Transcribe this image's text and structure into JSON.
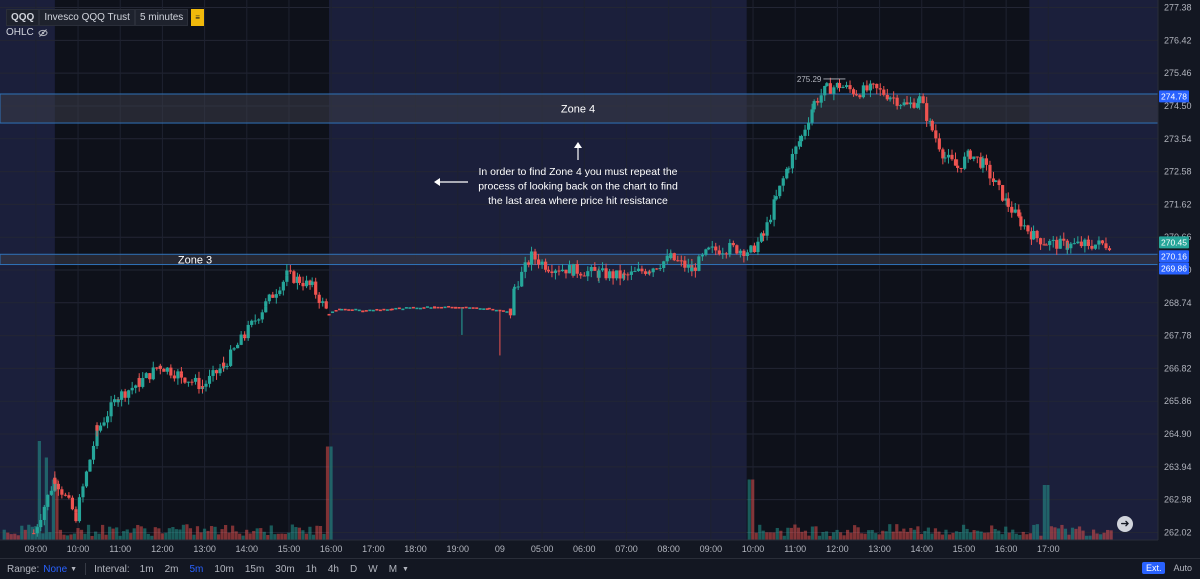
{
  "legend": {
    "symbol": "QQQ",
    "name": "Invesco QQQ Trust",
    "interval": "5 minutes",
    "ohlc_label": "OHLC"
  },
  "toolbar": {
    "range_label": "Range:",
    "range_value": "None",
    "interval_label": "Interval:",
    "intervals": [
      "1m",
      "2m",
      "5m",
      "10m",
      "15m",
      "30m",
      "1h",
      "4h",
      "D",
      "W",
      "M"
    ],
    "active_interval": "5m",
    "ext_label": "Ext.",
    "auto_label": "Auto"
  },
  "colors": {
    "background": "#131722",
    "session_shade": "#1b1f3b",
    "up": "#26a69a",
    "down": "#ef5350",
    "zone_fill": "#3a3d48",
    "zone_border": "#2f72b8"
  },
  "chart_data": {
    "type": "candlestick",
    "ylim": [
      261.8,
      277.6
    ],
    "y_ticks": [
      "277.38",
      "276.42",
      "275.46",
      "274.50",
      "273.54",
      "272.58",
      "271.62",
      "270.66",
      "269.70",
      "268.74",
      "267.78",
      "266.82",
      "265.86",
      "264.90",
      "263.94",
      "262.98",
      "262.02"
    ],
    "x_ticks": [
      "09:00",
      "10:00",
      "11:00",
      "12:00",
      "13:00",
      "14:00",
      "15:00",
      "16:00",
      "17:00",
      "18:00",
      "19:00",
      "09",
      "05:00",
      "06:00",
      "07:00",
      "08:00",
      "09:00",
      "10:00",
      "11:00",
      "12:00",
      "13:00",
      "14:00",
      "15:00",
      "16:00",
      "17:00"
    ],
    "price_labels": [
      {
        "text": "274.78",
        "value": 274.78,
        "color": "#2962ff"
      },
      {
        "text": "270.45",
        "value": 270.45,
        "color": "#26a69a"
      },
      {
        "text": "270.16",
        "value": 270.16,
        "color": "#2962ff"
      },
      {
        "text": "269.86",
        "value": 269.86,
        "color": "#2962ff"
      }
    ],
    "high_marker": {
      "text": "275.29",
      "value": 275.29
    },
    "zones": [
      {
        "name": "Zone 4",
        "low": 274.0,
        "high": 274.85
      },
      {
        "name": "Zone 3",
        "low": 269.86,
        "high": 270.16
      }
    ],
    "annotation": {
      "lines": [
        "In order to find Zone 4 you must repeat the",
        "process of looking back on the chart to find",
        "the last area where price hit resistance"
      ]
    },
    "path": [
      [
        9.0,
        262.0
      ],
      [
        9.5,
        263.6
      ],
      [
        10.0,
        262.5
      ],
      [
        10.5,
        265.0
      ],
      [
        11.0,
        266.0
      ],
      [
        11.5,
        266.4
      ],
      [
        12.0,
        266.9
      ],
      [
        12.5,
        266.6
      ],
      [
        13.0,
        266.3
      ],
      [
        13.5,
        266.9
      ],
      [
        14.0,
        267.8
      ],
      [
        14.5,
        268.7
      ],
      [
        15.0,
        269.55
      ],
      [
        15.3,
        269.4
      ],
      [
        15.6,
        269.2
      ],
      [
        16.0,
        268.4
      ],
      [
        16.3,
        268.55
      ],
      [
        16.8,
        268.5
      ],
      [
        17.5,
        268.55
      ],
      [
        18.5,
        268.6
      ],
      [
        19.0,
        268.6
      ],
      [
        19.8,
        268.55
      ],
      [
        20.3,
        268.45
      ],
      [
        20.4,
        269.2
      ],
      [
        20.8,
        270.1
      ],
      [
        21.2,
        269.8
      ],
      [
        21.8,
        269.7
      ],
      [
        22.4,
        269.6
      ],
      [
        23.0,
        269.5
      ],
      [
        23.6,
        269.75
      ],
      [
        24.1,
        270.05
      ],
      [
        24.6,
        269.7
      ],
      [
        25.0,
        270.25
      ],
      [
        25.5,
        270.35
      ],
      [
        26.0,
        270.25
      ],
      [
        26.3,
        270.7
      ],
      [
        26.6,
        271.8
      ],
      [
        26.9,
        272.8
      ],
      [
        27.2,
        273.6
      ],
      [
        27.5,
        274.6
      ],
      [
        27.8,
        275.0
      ],
      [
        28.1,
        275.1
      ],
      [
        28.5,
        274.9
      ],
      [
        28.9,
        275.0
      ],
      [
        29.3,
        274.8
      ],
      [
        29.7,
        274.5
      ],
      [
        30.0,
        274.7
      ],
      [
        30.3,
        273.8
      ],
      [
        30.6,
        273.0
      ],
      [
        30.9,
        272.7
      ],
      [
        31.2,
        273.1
      ],
      [
        31.5,
        272.8
      ],
      [
        31.8,
        272.2
      ],
      [
        32.1,
        271.6
      ],
      [
        32.4,
        271.1
      ],
      [
        32.7,
        270.7
      ],
      [
        33.0,
        270.5
      ],
      [
        33.5,
        270.42
      ],
      [
        34.0,
        270.45
      ],
      [
        34.5,
        270.45
      ]
    ],
    "volume_spikes": [
      {
        "t": 9.15,
        "v": 0.9
      },
      {
        "t": 9.3,
        "v": 0.75
      },
      {
        "t": 9.5,
        "v": 0.55
      },
      {
        "t": 16.0,
        "v": 0.85
      },
      {
        "t": 16.15,
        "v": 0.45
      },
      {
        "t": 19.0,
        "v": 0.12
      },
      {
        "t": 26.0,
        "v": 0.55
      },
      {
        "t": 33.0,
        "v": 0.5
      }
    ]
  }
}
